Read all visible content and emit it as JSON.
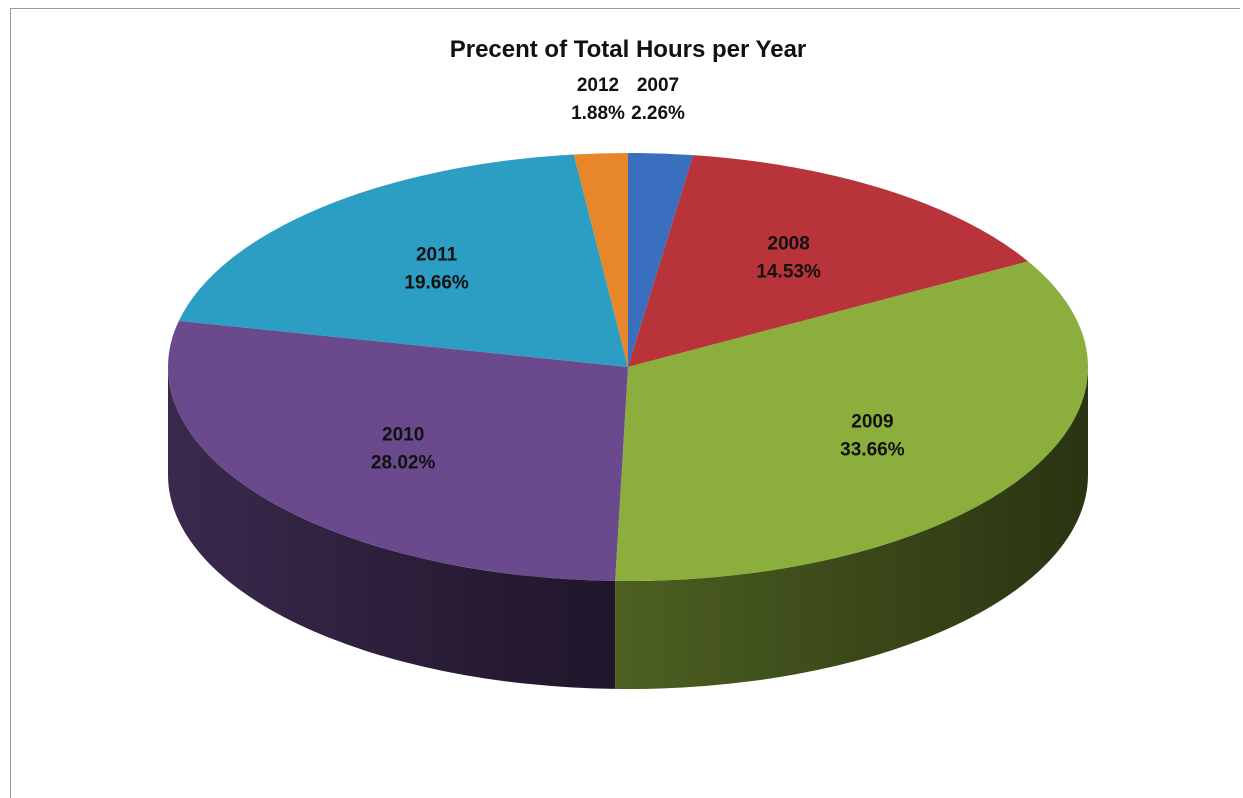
{
  "chart_data": {
    "type": "pie",
    "title": "Precent of Total Hours per Year",
    "three_d": true,
    "slices": [
      {
        "label": "2007",
        "value": 2.26,
        "value_label": "2.26%",
        "color": "#3a6fbf"
      },
      {
        "label": "2008",
        "value": 14.53,
        "value_label": "14.53%",
        "color": "#b8343a"
      },
      {
        "label": "2009",
        "value": 33.66,
        "value_label": "33.66%",
        "color": "#8cae3c"
      },
      {
        "label": "2010",
        "value": 28.02,
        "value_label": "28.02%",
        "color": "#6a4a8c"
      },
      {
        "label": "2011",
        "value": 19.66,
        "value_label": "19.66%",
        "color": "#2c9ec3"
      },
      {
        "label": "2012",
        "value": 1.88,
        "value_label": "1.88%",
        "color": "#e8862a"
      }
    ]
  }
}
